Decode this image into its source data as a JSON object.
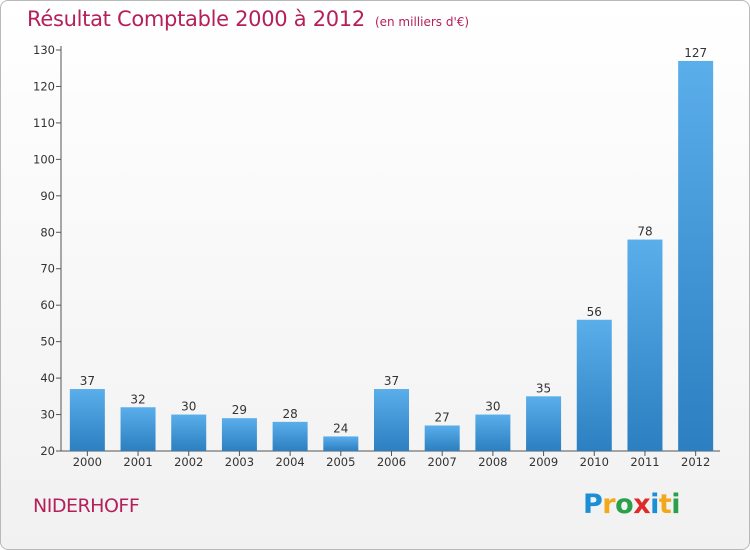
{
  "title": "Résultat Comptable 2000 à 2012",
  "subtitle": "(en milliers d'€)",
  "place": "NIDERHOFF",
  "logo": {
    "letters": [
      "P",
      "r",
      "o",
      "x",
      "i",
      "t",
      "i"
    ],
    "colors": [
      "#1a8fd6",
      "#f2a81c",
      "#2aa04a",
      "#e02a2a",
      "#1a8fd6",
      "#f2a81c",
      "#2aa04a"
    ]
  },
  "colors": {
    "bar_top": "#5aaeea",
    "bar_bottom": "#2c7fc0",
    "title": "#b5205a"
  },
  "chart_data": {
    "type": "bar",
    "categories": [
      "2000",
      "2001",
      "2002",
      "2003",
      "2004",
      "2005",
      "2006",
      "2007",
      "2008",
      "2009",
      "2010",
      "2011",
      "2012"
    ],
    "values": [
      37,
      32,
      30,
      29,
      28,
      24,
      37,
      27,
      30,
      35,
      56,
      78,
      127
    ],
    "ylim": [
      20,
      130
    ],
    "yticks": [
      20,
      30,
      40,
      50,
      60,
      70,
      80,
      90,
      100,
      110,
      120,
      130
    ],
    "grid": false,
    "data_labels": true
  }
}
